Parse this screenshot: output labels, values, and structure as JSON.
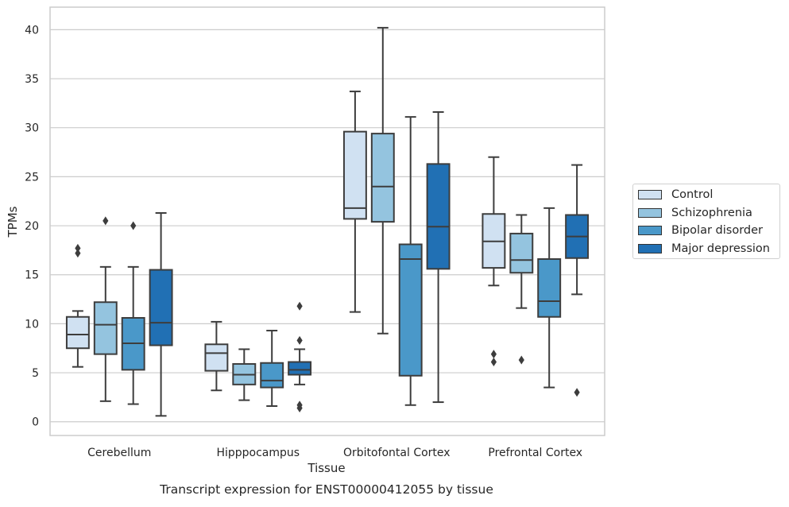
{
  "chart_data": {
    "type": "box",
    "title": "Transcript expression for ENST00000412055 by tissue",
    "xlabel": "Tissue",
    "ylabel": "TPMs",
    "ylim": [
      -1.4,
      42.3
    ],
    "yticks": [
      0,
      5,
      10,
      15,
      20,
      25,
      30,
      35,
      40
    ],
    "grid": true,
    "legend_position": "right",
    "categories": [
      "Cerebellum",
      "Hipppocampus",
      "Orbitofontal Cortex",
      "Prefrontal Cortex"
    ],
    "series": [
      {
        "name": "Control",
        "color": "#d0e1f2",
        "boxes": [
          {
            "whisker_low": 5.6,
            "q1": 7.5,
            "median": 8.9,
            "q3": 10.7,
            "whisker_high": 11.3,
            "outliers": [
              17.2,
              17.7
            ]
          },
          {
            "whisker_low": 3.2,
            "q1": 5.2,
            "median": 7.0,
            "q3": 7.9,
            "whisker_high": 10.2,
            "outliers": []
          },
          {
            "whisker_low": 11.2,
            "q1": 20.7,
            "median": 21.8,
            "q3": 29.6,
            "whisker_high": 33.7,
            "outliers": []
          },
          {
            "whisker_low": 13.9,
            "q1": 15.7,
            "median": 18.4,
            "q3": 21.2,
            "whisker_high": 27.0,
            "outliers": [
              6.1,
              6.9
            ]
          }
        ]
      },
      {
        "name": "Schizophrenia",
        "color": "#94c4df",
        "boxes": [
          {
            "whisker_low": 2.1,
            "q1": 6.9,
            "median": 9.9,
            "q3": 12.2,
            "whisker_high": 15.8,
            "outliers": [
              20.5
            ]
          },
          {
            "whisker_low": 2.2,
            "q1": 3.8,
            "median": 4.8,
            "q3": 5.9,
            "whisker_high": 7.4,
            "outliers": []
          },
          {
            "whisker_low": 9.0,
            "q1": 20.4,
            "median": 24.0,
            "q3": 29.4,
            "whisker_high": 40.2,
            "outliers": []
          },
          {
            "whisker_low": 11.6,
            "q1": 15.2,
            "median": 16.5,
            "q3": 19.2,
            "whisker_high": 21.1,
            "outliers": [
              6.3
            ]
          }
        ]
      },
      {
        "name": "Bipolar disorder",
        "color": "#4a98c9",
        "boxes": [
          {
            "whisker_low": 1.8,
            "q1": 5.3,
            "median": 8.0,
            "q3": 10.6,
            "whisker_high": 15.8,
            "outliers": [
              20.0
            ]
          },
          {
            "whisker_low": 1.6,
            "q1": 3.5,
            "median": 4.2,
            "q3": 6.0,
            "whisker_high": 9.3,
            "outliers": []
          },
          {
            "whisker_low": 1.7,
            "q1": 4.7,
            "median": 16.6,
            "q3": 18.1,
            "whisker_high": 31.1,
            "outliers": []
          },
          {
            "whisker_low": 3.5,
            "q1": 10.7,
            "median": 12.3,
            "q3": 16.6,
            "whisker_high": 21.8,
            "outliers": []
          }
        ]
      },
      {
        "name": "Major depression",
        "color": "#2170b4",
        "boxes": [
          {
            "whisker_low": 0.6,
            "q1": 7.8,
            "median": 10.1,
            "q3": 15.5,
            "whisker_high": 21.3,
            "outliers": []
          },
          {
            "whisker_low": 3.8,
            "q1": 4.8,
            "median": 5.3,
            "q3": 6.1,
            "whisker_high": 7.4,
            "outliers": [
              1.4,
              1.7,
              8.3,
              11.8
            ]
          },
          {
            "whisker_low": 2.0,
            "q1": 15.6,
            "median": 19.9,
            "q3": 26.3,
            "whisker_high": 31.6,
            "outliers": []
          },
          {
            "whisker_low": 13.0,
            "q1": 16.7,
            "median": 18.9,
            "q3": 21.1,
            "whisker_high": 26.2,
            "outliers": [
              3.0
            ]
          }
        ]
      }
    ]
  }
}
